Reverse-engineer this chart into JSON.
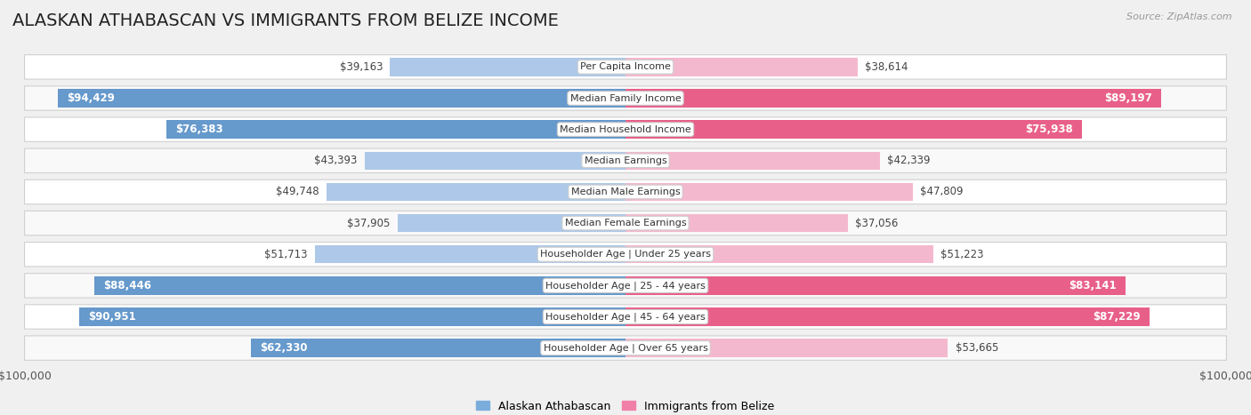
{
  "title": "ALASKAN ATHABASCAN VS IMMIGRANTS FROM BELIZE INCOME",
  "source": "Source: ZipAtlas.com",
  "categories": [
    "Per Capita Income",
    "Median Family Income",
    "Median Household Income",
    "Median Earnings",
    "Median Male Earnings",
    "Median Female Earnings",
    "Householder Age | Under 25 years",
    "Householder Age | 25 - 44 years",
    "Householder Age | 45 - 64 years",
    "Householder Age | Over 65 years"
  ],
  "left_values": [
    39163,
    94429,
    76383,
    43393,
    49748,
    37905,
    51713,
    88446,
    90951,
    62330
  ],
  "right_values": [
    38614,
    89197,
    75938,
    42339,
    47809,
    37056,
    51223,
    83141,
    87229,
    53665
  ],
  "left_labels": [
    "$39,163",
    "$94,429",
    "$76,383",
    "$43,393",
    "$49,748",
    "$37,905",
    "$51,713",
    "$88,446",
    "$90,951",
    "$62,330"
  ],
  "right_labels": [
    "$38,614",
    "$89,197",
    "$75,938",
    "$42,339",
    "$47,809",
    "$37,056",
    "$51,223",
    "$83,141",
    "$87,229",
    "$53,665"
  ],
  "max_value": 100000,
  "left_color_light": "#adc8e8",
  "left_color_dark": "#6699cc",
  "right_color_light": "#f4b8ce",
  "right_color_dark": "#e8608a",
  "left_legend": "Alaskan Athabascan",
  "right_legend": "Immigrants from Belize",
  "background_color": "#f0f0f0",
  "row_bg_odd": "#f9f9f9",
  "row_bg_even": "#ffffff",
  "title_fontsize": 14,
  "label_fontsize": 8.5,
  "cat_fontsize": 8,
  "axis_label": "$100,000",
  "inside_label_threshold": 55000,
  "legend_box_color_left": "#7aaddc",
  "legend_box_color_right": "#f080a8"
}
